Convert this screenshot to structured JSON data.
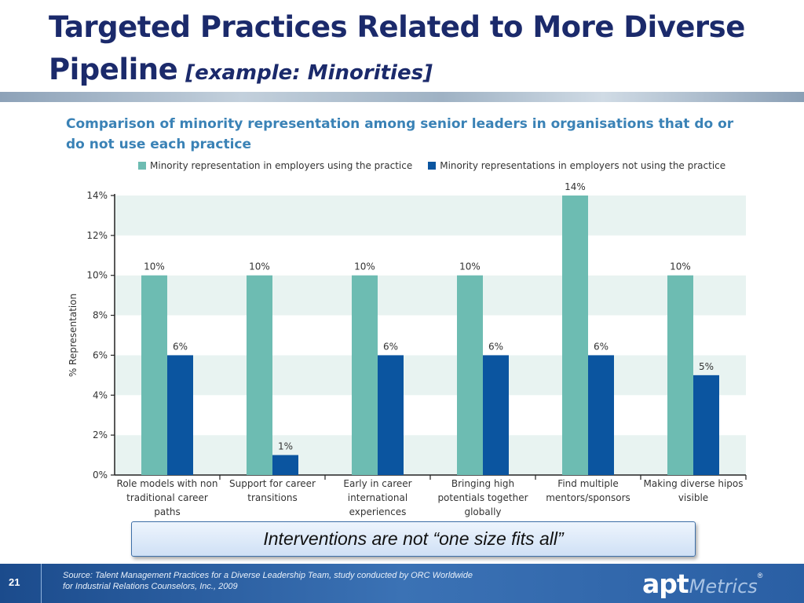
{
  "slide": {
    "title": "Targeted Practices Related to More Diverse Pipeline",
    "title_sub": "[example: Minorities]",
    "callout": "Interventions are not “one size fits all”",
    "page_number": "21",
    "source_line1": "Source:  Talent Management Practices for a Diverse Leadership Team, study conducted by ORC Worldwide",
    "source_line2": "for Industrial Relations Counselors, Inc., 2009",
    "logo_apt": "apt",
    "logo_metrics": "Metrics",
    "logo_reg": "®"
  },
  "chart_data": {
    "type": "bar",
    "title": "Comparison of minority representation among senior leaders in organisations that do or do not use each practice",
    "ylabel": "% Representation",
    "xlabel": "",
    "ylim": [
      0,
      14
    ],
    "yticks": [
      "0%",
      "2%",
      "4%",
      "6%",
      "8%",
      "10%",
      "12%",
      "14%"
    ],
    "grid": "alternating horizontal bands",
    "legend_position": "top",
    "categories": [
      [
        "Role models with non",
        "traditional career",
        "paths"
      ],
      [
        "Support for career",
        "transitions"
      ],
      [
        "Early in career",
        "international",
        "experiences"
      ],
      [
        "Bringing high",
        "potentials together",
        "globally"
      ],
      [
        "Find multiple",
        "mentors/sponsors"
      ],
      [
        "Making diverse hipos",
        "visible"
      ]
    ],
    "series": [
      {
        "name": "Minority representation in employers using the practice",
        "color": "#6dbcb2",
        "values": [
          10,
          10,
          10,
          10,
          14,
          10
        ],
        "labels": [
          "10%",
          "10%",
          "10%",
          "10%",
          "14%",
          "10%"
        ]
      },
      {
        "name": "Minority representations in employers not using the practice",
        "color": "#0b55a0",
        "values": [
          6,
          1,
          6,
          6,
          6,
          5
        ],
        "labels": [
          "6%",
          "1%",
          "6%",
          "6%",
          "6%",
          "5%"
        ]
      }
    ]
  }
}
